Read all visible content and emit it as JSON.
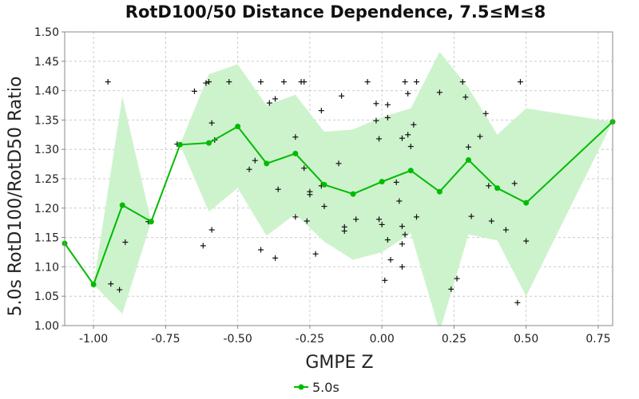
{
  "colors": {
    "line": "#00bb00",
    "band": "#cdf3cd",
    "scatter": "#111111",
    "grid": "#cccccc",
    "frame": "#888888"
  },
  "chart_data": {
    "type": "line",
    "title": "RotD100/50 Distance Dependence, 7.5≤M≤8",
    "xlabel": "GMPE Z",
    "ylabel": "5.0s RotD100/RotD50 Ratio",
    "xlim": [
      -1.1,
      0.8
    ],
    "ylim": [
      1.0,
      1.5
    ],
    "xticks": [
      -1.0,
      -0.75,
      -0.5,
      -0.25,
      0.0,
      0.25,
      0.5,
      0.75
    ],
    "xtick_labels": [
      "-1.00",
      "-0.75",
      "-0.50",
      "-0.25",
      "0.00",
      "0.25",
      "0.50",
      "0.75"
    ],
    "yticks": [
      1.0,
      1.05,
      1.1,
      1.15,
      1.2,
      1.25,
      1.3,
      1.35,
      1.4,
      1.45,
      1.5
    ],
    "ytick_labels": [
      "1.00",
      "1.05",
      "1.10",
      "1.15",
      "1.20",
      "1.25",
      "1.30",
      "1.35",
      "1.40",
      "1.45",
      "1.50"
    ],
    "grid": true,
    "legend": {
      "position": "bottom-center",
      "entries": [
        "5.0s"
      ]
    },
    "series": [
      {
        "name": "5.0s",
        "x": [
          -1.1,
          -1.0,
          -0.9,
          -0.8,
          -0.7,
          -0.6,
          -0.5,
          -0.4,
          -0.3,
          -0.2,
          -0.1,
          0.0,
          0.1,
          0.2,
          0.3,
          0.4,
          0.5,
          0.8
        ],
        "y": [
          1.14,
          1.07,
          1.205,
          1.177,
          1.308,
          1.311,
          1.339,
          1.276,
          1.293,
          1.24,
          1.224,
          1.245,
          1.264,
          1.228,
          1.282,
          1.234,
          1.209,
          1.347
        ]
      }
    ],
    "band": {
      "x": [
        -1.1,
        -1.0,
        -0.9,
        -0.8,
        -0.7,
        -0.6,
        -0.5,
        -0.4,
        -0.3,
        -0.2,
        -0.1,
        0.0,
        0.1,
        0.2,
        0.3,
        0.4,
        0.5,
        0.8
      ],
      "upper": [
        1.14,
        1.07,
        1.39,
        1.177,
        1.308,
        1.428,
        1.445,
        1.375,
        1.393,
        1.33,
        1.334,
        1.355,
        1.37,
        1.466,
        1.405,
        1.325,
        1.37,
        1.347
      ],
      "lower": [
        1.14,
        1.07,
        1.02,
        1.177,
        1.308,
        1.194,
        1.234,
        1.153,
        1.19,
        1.143,
        1.112,
        1.125,
        1.157,
        0.99,
        1.155,
        1.145,
        1.05,
        1.347
      ]
    },
    "scatter": [
      [
        -0.95,
        1.415
      ],
      [
        -0.94,
        1.071
      ],
      [
        -0.91,
        1.061
      ],
      [
        -0.89,
        1.142
      ],
      [
        -0.81,
        1.177
      ],
      [
        -0.71,
        1.309
      ],
      [
        -0.65,
        1.399
      ],
      [
        -0.62,
        1.136
      ],
      [
        -0.61,
        1.413
      ],
      [
        -0.6,
        1.415
      ],
      [
        -0.59,
        1.345
      ],
      [
        -0.59,
        1.163
      ],
      [
        -0.58,
        1.316
      ],
      [
        -0.53,
        1.415
      ],
      [
        -0.46,
        1.266
      ],
      [
        -0.44,
        1.281
      ],
      [
        -0.42,
        1.415
      ],
      [
        -0.42,
        1.129
      ],
      [
        -0.39,
        1.379
      ],
      [
        -0.37,
        1.386
      ],
      [
        -0.37,
        1.115
      ],
      [
        -0.36,
        1.232
      ],
      [
        -0.34,
        1.415
      ],
      [
        -0.3,
        1.321
      ],
      [
        -0.3,
        1.185
      ],
      [
        -0.28,
        1.415
      ],
      [
        -0.27,
        1.415
      ],
      [
        -0.27,
        1.268
      ],
      [
        -0.26,
        1.178
      ],
      [
        -0.25,
        1.228
      ],
      [
        -0.25,
        1.223
      ],
      [
        -0.23,
        1.122
      ],
      [
        -0.21,
        1.366
      ],
      [
        -0.21,
        1.238
      ],
      [
        -0.2,
        1.203
      ],
      [
        -0.15,
        1.276
      ],
      [
        -0.14,
        1.391
      ],
      [
        -0.13,
        1.168
      ],
      [
        -0.13,
        1.161
      ],
      [
        -0.09,
        1.181
      ],
      [
        -0.05,
        1.415
      ],
      [
        -0.02,
        1.349
      ],
      [
        -0.02,
        1.378
      ],
      [
        -0.01,
        1.181
      ],
      [
        -0.01,
        1.318
      ],
      [
        0.0,
        1.172
      ],
      [
        0.01,
        1.077
      ],
      [
        0.02,
        1.354
      ],
      [
        0.02,
        1.376
      ],
      [
        0.02,
        1.146
      ],
      [
        0.03,
        1.112
      ],
      [
        0.05,
        1.244
      ],
      [
        0.06,
        1.212
      ],
      [
        0.07,
        1.169
      ],
      [
        0.07,
        1.139
      ],
      [
        0.07,
        1.1
      ],
      [
        0.08,
        1.155
      ],
      [
        0.07,
        1.319
      ],
      [
        0.08,
        1.415
      ],
      [
        0.09,
        1.395
      ],
      [
        0.09,
        1.325
      ],
      [
        0.1,
        1.305
      ],
      [
        0.11,
        1.342
      ],
      [
        0.12,
        1.415
      ],
      [
        0.12,
        1.185
      ],
      [
        0.2,
        1.397
      ],
      [
        0.24,
        1.062
      ],
      [
        0.26,
        1.08
      ],
      [
        0.28,
        1.415
      ],
      [
        0.29,
        1.389
      ],
      [
        0.3,
        1.304
      ],
      [
        0.31,
        1.186
      ],
      [
        0.34,
        1.322
      ],
      [
        0.36,
        1.361
      ],
      [
        0.37,
        1.238
      ],
      [
        0.38,
        1.178
      ],
      [
        0.43,
        1.163
      ],
      [
        0.46,
        1.242
      ],
      [
        0.47,
        1.039
      ],
      [
        0.48,
        1.415
      ],
      [
        0.5,
        1.144
      ]
    ]
  }
}
